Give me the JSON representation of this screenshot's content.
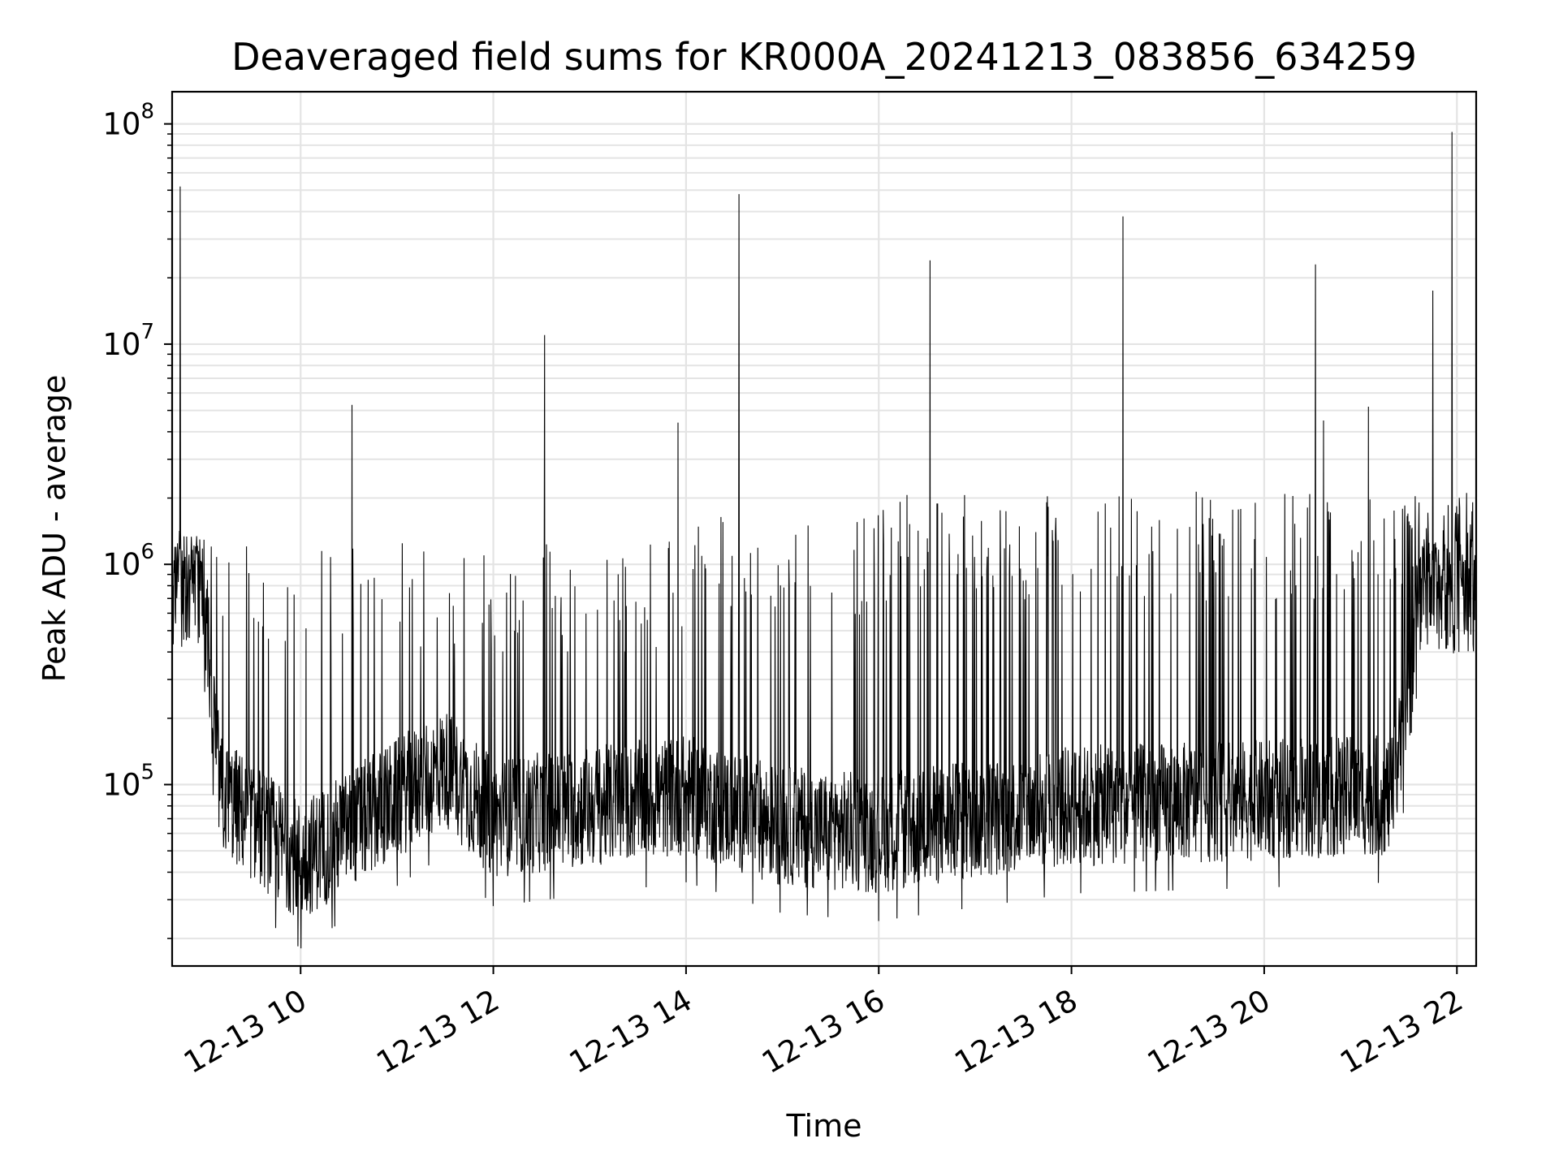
{
  "chart_data": {
    "type": "line",
    "title": "Deaveraged field sums for KR000A_20241213_083856_634259",
    "xlabel": "Time",
    "ylabel": "Peak ADU - average",
    "yscale": "log",
    "ylim": [
      15000,
      140000000
    ],
    "xlim": [
      "12-13 08:40",
      "12-13 22:12"
    ],
    "x_tick_labels": [
      "12-13 10",
      "12-13 12",
      "12-13 14",
      "12-13 16",
      "12-13 18",
      "12-13 20",
      "12-13 22"
    ],
    "y_tick_labels": [
      {
        "base": "10",
        "exp": "5"
      },
      {
        "base": "10",
        "exp": "6"
      },
      {
        "base": "10",
        "exp": "7"
      },
      {
        "base": "10",
        "exp": "8"
      }
    ],
    "grid": true,
    "line_color": "#000000",
    "series": [
      {
        "baseline_profile": [
          {
            "t": "12-13 08:40",
            "v": 800000
          },
          {
            "t": "12-13 09:00",
            "v": 700000
          },
          {
            "t": "12-13 09:10",
            "v": 90000
          },
          {
            "t": "12-13 10:00",
            "v": 45000
          },
          {
            "t": "12-13 11:30",
            "v": 120000
          },
          {
            "t": "12-13 12:00",
            "v": 70000
          },
          {
            "t": "12-13 14:00",
            "v": 90000
          },
          {
            "t": "12-13 15:00",
            "v": 65000
          },
          {
            "t": "12-13 16:00",
            "v": 60000
          },
          {
            "t": "12-13 18:00",
            "v": 80000
          },
          {
            "t": "12-13 20:00",
            "v": 85000
          },
          {
            "t": "12-13 21:20",
            "v": 90000
          },
          {
            "t": "12-13 21:40",
            "v": 800000
          },
          {
            "t": "12-13 22:12",
            "v": 700000
          }
        ],
        "peaks": [
          {
            "t": "12-13 08:45",
            "v": 52000000
          },
          {
            "t": "12-13 10:32",
            "v": 5300000
          },
          {
            "t": "12-13 12:32",
            "v": 11000000
          },
          {
            "t": "12-13 13:55",
            "v": 4400000
          },
          {
            "t": "12-13 14:33",
            "v": 48000000
          },
          {
            "t": "12-13 16:32",
            "v": 24000000
          },
          {
            "t": "12-13 18:32",
            "v": 38000000
          },
          {
            "t": "12-13 20:32",
            "v": 23000000
          },
          {
            "t": "12-13 20:37",
            "v": 4500000
          },
          {
            "t": "12-13 21:05",
            "v": 5200000
          },
          {
            "t": "12-13 21:45",
            "v": 17500000
          },
          {
            "t": "12-13 21:57",
            "v": 92000000
          }
        ]
      }
    ]
  }
}
